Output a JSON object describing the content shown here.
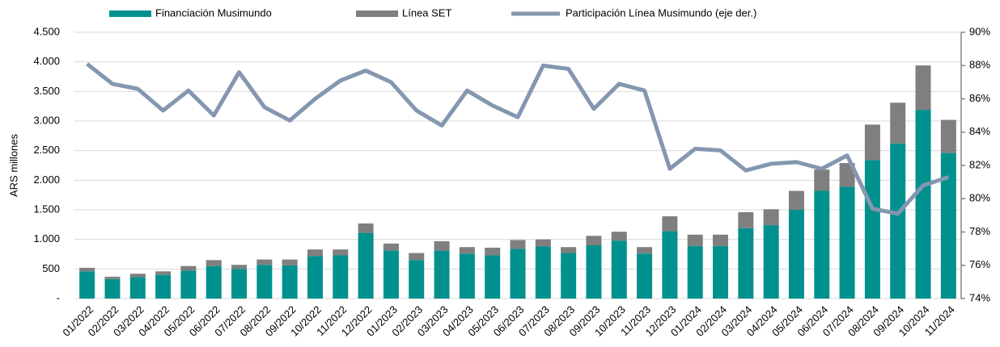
{
  "chart_data": {
    "type": "bar",
    "stacked": true,
    "y_label": "ARS millones",
    "categories": [
      "01/2022",
      "02/2022",
      "03/2022",
      "04/2022",
      "05/2022",
      "06/2022",
      "07/2022",
      "08/2022",
      "09/2022",
      "10/2022",
      "11/2022",
      "12/2022",
      "01/2023",
      "02/2023",
      "03/2023",
      "04/2023",
      "05/2023",
      "06/2023",
      "07/2023",
      "08/2023",
      "09/2023",
      "10/2023",
      "11/2023",
      "12/2023",
      "01/2024",
      "02/2024",
      "03/2024",
      "04/2024",
      "05/2024",
      "06/2024",
      "07/2024",
      "08/2024",
      "09/2024",
      "10/2024",
      "11/2024"
    ],
    "series": [
      {
        "name": "Financiación Musimundo",
        "type": "bar",
        "color": "#00918f",
        "values": [
          460,
          330,
          360,
          400,
          470,
          550,
          500,
          570,
          560,
          720,
          730,
          1110,
          810,
          650,
          810,
          760,
          730,
          840,
          880,
          770,
          900,
          980,
          760,
          1140,
          890,
          890,
          1190,
          1240,
          1500,
          1820,
          1890,
          2340,
          2620,
          3190,
          2460
        ]
      },
      {
        "name": "Línea SET",
        "type": "bar",
        "color": "#7f7f7f",
        "values": [
          60,
          40,
          60,
          60,
          80,
          100,
          70,
          90,
          100,
          110,
          100,
          160,
          120,
          120,
          160,
          110,
          130,
          150,
          120,
          100,
          160,
          150,
          110,
          250,
          190,
          190,
          270,
          270,
          320,
          360,
          400,
          600,
          690,
          750,
          560
        ]
      },
      {
        "name": "Participación Línea Musimundo (eje der.)",
        "type": "line",
        "axis": "y2",
        "color": "#8497b0",
        "values": [
          88.1,
          86.9,
          86.6,
          85.3,
          86.5,
          85.0,
          87.6,
          85.5,
          84.7,
          86.0,
          87.1,
          87.7,
          87.0,
          85.3,
          84.4,
          86.5,
          85.6,
          84.9,
          88.0,
          87.8,
          85.4,
          86.9,
          86.5,
          81.8,
          83.0,
          82.9,
          81.7,
          82.1,
          82.2,
          81.8,
          82.6,
          79.4,
          79.1,
          80.8,
          81.3
        ]
      }
    ],
    "ylim": [
      0,
      4500
    ],
    "yticks": [
      {
        "value": 0,
        "label": "-"
      },
      500,
      {
        "value": 1000,
        "label": "1.000"
      },
      {
        "value": 1500,
        "label": "1.500"
      },
      {
        "value": 2000,
        "label": "2.000"
      },
      {
        "value": 2500,
        "label": "2.500"
      },
      {
        "value": 3000,
        "label": "3.000"
      },
      {
        "value": 3500,
        "label": "3.500"
      },
      {
        "value": 4000,
        "label": "4.000"
      },
      {
        "value": 4500,
        "label": "4.500"
      }
    ],
    "y2lim": [
      74,
      90
    ],
    "y2ticks": [
      {
        "value": 74,
        "label": "74%"
      },
      {
        "value": 76,
        "label": "76%"
      },
      {
        "value": 78,
        "label": "78%"
      },
      {
        "value": 80,
        "label": "80%"
      },
      {
        "value": 82,
        "label": "82%"
      },
      {
        "value": 84,
        "label": "84%"
      },
      {
        "value": 86,
        "label": "86%"
      },
      {
        "value": 88,
        "label": "88%"
      },
      {
        "value": 90,
        "label": "90%"
      }
    ],
    "grid": true,
    "legend": "top"
  }
}
